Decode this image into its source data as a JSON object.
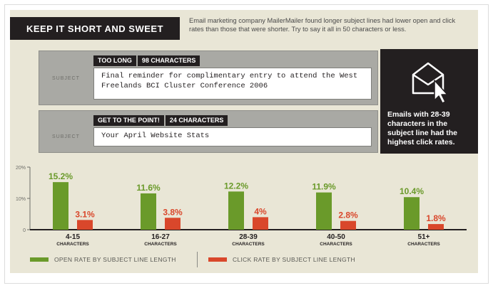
{
  "header": {
    "title": "KEEP IT SHORT AND SWEET",
    "intro": "Email marketing company MailerMailer found longer subject lines had lower open and click rates than those that were shorter. Try to say it all in 50 characters or less."
  },
  "examples": [
    {
      "tag": "TOO LONG",
      "count": "98 CHARACTERS",
      "label": "SUBJECT",
      "text": "Final reminder for complimentary entry to attend the West Freelands BCI Cluster Conference 2006"
    },
    {
      "tag": "GET TO THE POINT!",
      "count": "24 CHARACTERS",
      "label": "SUBJECT",
      "text": "Your April Website Stats"
    }
  ],
  "sidebar": {
    "icon": "envelope-cursor-icon",
    "text": "Emails with 28-39 characters in the subject line had the highest click rates."
  },
  "legend": {
    "open": "OPEN RATE BY SUBJECT LINE LENGTH",
    "click": "CLICK RATE BY SUBJECT LINE LENGTH"
  },
  "colors": {
    "open": "#6a9a2a",
    "click": "#d9472b",
    "dark": "#231f20"
  },
  "chart_data": {
    "type": "bar",
    "categories": [
      "4-15",
      "16-27",
      "28-39",
      "40-50",
      "51+"
    ],
    "category_sublabel": "CHARACTERS",
    "series": [
      {
        "name": "OPEN RATE BY SUBJECT LINE LENGTH",
        "values": [
          15.2,
          11.6,
          12.2,
          11.9,
          10.4
        ],
        "labels": [
          "15.2%",
          "11.6%",
          "12.2%",
          "11.9%",
          "10.4%"
        ]
      },
      {
        "name": "CLICK RATE BY SUBJECT LINE LENGTH",
        "values": [
          3.1,
          3.8,
          4.0,
          2.8,
          1.8
        ],
        "labels": [
          "3.1%",
          "3.8%",
          "4%",
          "2.8%",
          "1.8%"
        ]
      }
    ],
    "ylim": [
      0,
      20
    ],
    "yticks": [
      0,
      10,
      20
    ],
    "ytick_labels": [
      "0",
      "10%",
      "20%"
    ],
    "grid": false,
    "legend_position": "bottom"
  }
}
